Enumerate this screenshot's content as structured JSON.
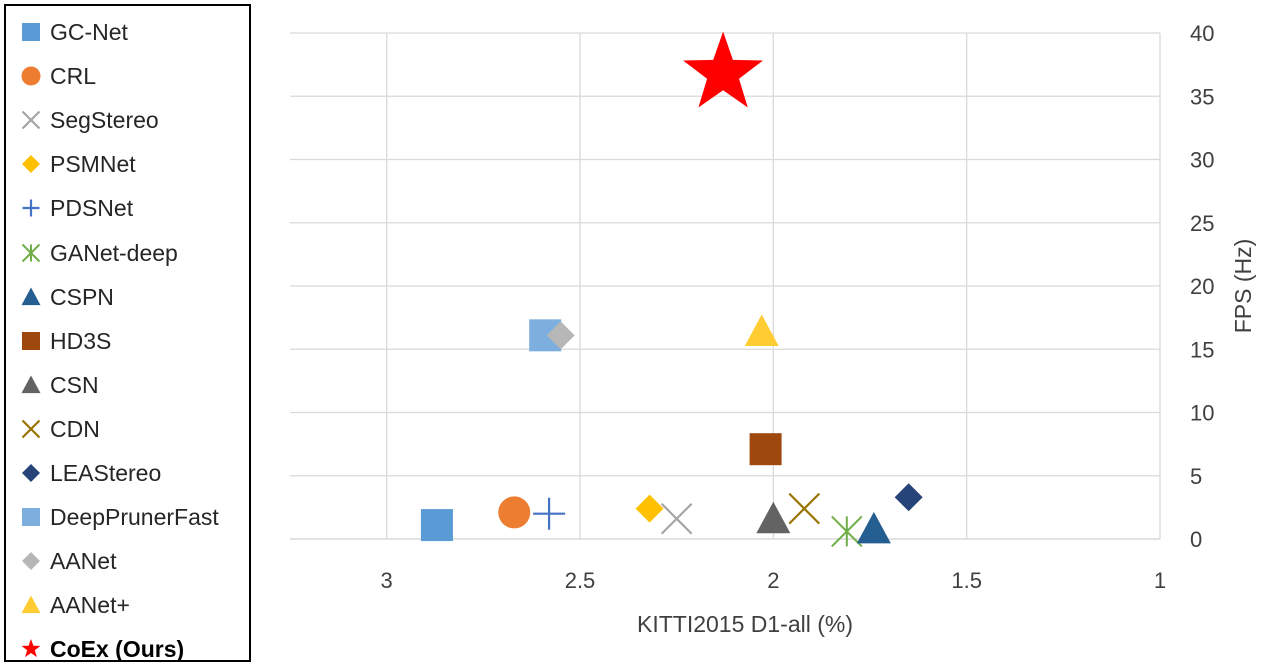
{
  "chart_data": {
    "type": "scatter",
    "xlabel": "KITTI2015 D1-all (%)",
    "ylabel": "FPS (Hz)",
    "xlim": [
      3.25,
      1
    ],
    "ylim": [
      0,
      40
    ],
    "x_reversed": true,
    "y_axis_side": "right",
    "x_ticks": [
      3,
      2.5,
      2,
      1.5,
      1
    ],
    "y_ticks": [
      0,
      5,
      10,
      15,
      20,
      25,
      30,
      35,
      40
    ],
    "grid": "both",
    "legend_position": "left",
    "series": [
      {
        "name": "GC-Net",
        "marker": "square",
        "color": "#5b9bd5",
        "x": 2.87,
        "y": 1.1
      },
      {
        "name": "CRL",
        "marker": "circle",
        "color": "#ed7d31",
        "x": 2.67,
        "y": 2.1
      },
      {
        "name": "SegStereo",
        "marker": "x",
        "color": "#a5a5a5",
        "x": 2.25,
        "y": 1.6
      },
      {
        "name": "PSMNet",
        "marker": "diamond",
        "color": "#ffc000",
        "x": 2.32,
        "y": 2.4
      },
      {
        "name": "PDSNet",
        "marker": "plus",
        "color": "#4472c4",
        "x": 2.58,
        "y": 2.0
      },
      {
        "name": "GANet-deep",
        "marker": "asterisk",
        "color": "#70ad47",
        "x": 1.81,
        "y": 0.6
      },
      {
        "name": "CSPN",
        "marker": "triangle",
        "color": "#255e91",
        "x": 1.74,
        "y": 0.8
      },
      {
        "name": "HD3S",
        "marker": "square",
        "color": "#9e480e",
        "x": 2.02,
        "y": 7.1
      },
      {
        "name": "CSN",
        "marker": "triangle",
        "color": "#636363",
        "x": 2.0,
        "y": 1.6
      },
      {
        "name": "CDN",
        "marker": "x",
        "color": "#997300",
        "x": 1.92,
        "y": 2.4
      },
      {
        "name": "LEAStereo",
        "marker": "diamond",
        "color": "#264478",
        "x": 1.65,
        "y": 3.3
      },
      {
        "name": "DeepPrunerFast",
        "marker": "square",
        "color": "#7cafdd",
        "x": 2.59,
        "y": 16.1
      },
      {
        "name": "AANet",
        "marker": "diamond",
        "color": "#b7b7b7",
        "x": 2.55,
        "y": 16.1
      },
      {
        "name": "AANet+",
        "marker": "triangle",
        "color": "#ffcd33",
        "x": 2.03,
        "y": 16.4
      },
      {
        "name": "CoEx (Ours)",
        "marker": "star",
        "color": "#ff0000",
        "x": 2.13,
        "y": 36.8,
        "bold": true
      }
    ]
  }
}
